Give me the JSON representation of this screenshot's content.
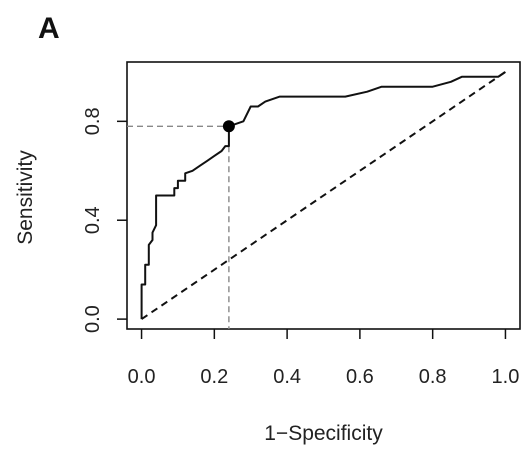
{
  "panel_label": "A",
  "chart_data": {
    "type": "line",
    "title": "",
    "xlabel": "1−Specificity",
    "ylabel": "Sensitivity",
    "xlim": [
      -0.04,
      1.04
    ],
    "ylim": [
      -0.04,
      1.04
    ],
    "x_ticks": [
      0.0,
      0.2,
      0.4,
      0.6,
      0.8,
      1.0
    ],
    "x_tick_labels": [
      "0.0",
      "0.2",
      "0.4",
      "0.6",
      "0.8",
      "1.0"
    ],
    "y_ticks": [
      0.0,
      0.4,
      0.8
    ],
    "y_tick_labels": [
      "0.0",
      "0.4",
      "0.8"
    ],
    "grid": false,
    "series": [
      {
        "style": "solid",
        "x": [
          0.0,
          0.0,
          0.01,
          0.01,
          0.02,
          0.02,
          0.03,
          0.03,
          0.04,
          0.04,
          0.07,
          0.09,
          0.09,
          0.1,
          0.1,
          0.12,
          0.12,
          0.14,
          0.16,
          0.18,
          0.2,
          0.22,
          0.23,
          0.24,
          0.24,
          0.28,
          0.3,
          0.32,
          0.34,
          0.38,
          0.4,
          0.45,
          0.56,
          0.62,
          0.66,
          0.8,
          0.85,
          0.88,
          0.98,
          1.0
        ],
        "y": [
          0.0,
          0.14,
          0.14,
          0.22,
          0.22,
          0.3,
          0.32,
          0.35,
          0.38,
          0.5,
          0.5,
          0.5,
          0.53,
          0.53,
          0.56,
          0.56,
          0.59,
          0.6,
          0.62,
          0.64,
          0.66,
          0.68,
          0.7,
          0.7,
          0.78,
          0.8,
          0.86,
          0.86,
          0.88,
          0.9,
          0.9,
          0.9,
          0.9,
          0.92,
          0.94,
          0.94,
          0.96,
          0.98,
          0.98,
          1.0
        ]
      },
      {
        "style": "dashed",
        "x": [
          0.0,
          1.0
        ],
        "y": [
          0.0,
          1.0
        ]
      }
    ],
    "cutoff_point": {
      "x": 0.24,
      "y": 0.78
    },
    "reference_lines": {
      "horizontal_y": 0.78,
      "vertical_x": 0.24
    },
    "colors": {
      "curve": "#111111",
      "reference": "#888888",
      "point": "#000000"
    }
  }
}
